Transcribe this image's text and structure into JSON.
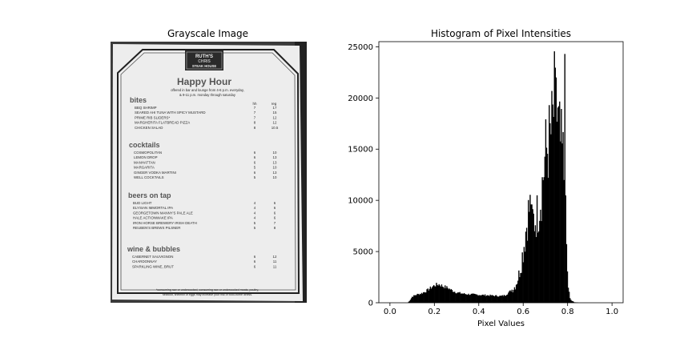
{
  "left_panel": {
    "title": "Grayscale Image",
    "menu": {
      "logo_line1": "RUTH'S",
      "logo_line2": "CHRIS",
      "logo_line3": "STEAK HOUSE",
      "heading": "Happy Hour",
      "subtitle_1": "offered in bar and lounge from 4-6 p.m. everyday,",
      "subtitle_2": "& 9-11 p.m. monday through saturday",
      "col_hh": "hh",
      "col_reg": "reg",
      "sections": [
        {
          "name": "bites",
          "items": [
            {
              "name": "BBQ SHRIMP",
              "hh": "7",
              "reg": "17"
            },
            {
              "name": "SEARED AHI TUNA WITH SPICY MUSTARD",
              "hh": "7",
              "reg": "15"
            },
            {
              "name": "PRIME RIB SLIDERS*",
              "hh": "7",
              "reg": "12"
            },
            {
              "name": "MARGHERITA FLATBREAD PIZZA",
              "hh": "8",
              "reg": "12"
            },
            {
              "name": "CHICKEN SALAD",
              "hh": "8",
              "reg": "10.5"
            }
          ]
        },
        {
          "name": "cocktails",
          "items": [
            {
              "name": "COSMOPOLITAN",
              "hh": "6",
              "reg": "10"
            },
            {
              "name": "LEMON DROP",
              "hh": "6",
              "reg": "13"
            },
            {
              "name": "MANHATTAN",
              "hh": "6",
              "reg": "13"
            },
            {
              "name": "MARGARITA",
              "hh": "5",
              "reg": "10"
            },
            {
              "name": "GINGER VODKA MARTINI",
              "hh": "6",
              "reg": "13"
            },
            {
              "name": "WELL COCKTAILS",
              "hh": "5",
              "reg": "10"
            }
          ]
        },
        {
          "name": "beers on tap",
          "items": [
            {
              "name": "BUD LIGHT",
              "hh": "4",
              "reg": "6"
            },
            {
              "name": "ELYSIAN IMMORTAL IPA",
              "hh": "4",
              "reg": "6"
            },
            {
              "name": "GEORGETOWN MANNY'S PALE ALE",
              "hh": "4",
              "reg": "6"
            },
            {
              "name": "HALE ACTIONWAKE IPA",
              "hh": "4",
              "reg": "6"
            },
            {
              "name": "IRON HORSE BREWERY IRISH DEATH",
              "hh": "5",
              "reg": "7"
            },
            {
              "name": "REUBEN'S BREWS PILSNER",
              "hh": "5",
              "reg": "8"
            }
          ]
        },
        {
          "name": "wine & bubbles",
          "items": [
            {
              "name": "CABERNET SAUVIGNON",
              "hh": "6",
              "reg": "12"
            },
            {
              "name": "CHARDONNAY",
              "hh": "6",
              "reg": "11"
            },
            {
              "name": "SPARKLING WINE, BRUT",
              "hh": "6",
              "reg": "11"
            }
          ]
        }
      ],
      "footnote_1": "*consuming raw or undercooked, consuming raw or undercooked meats, poultry,",
      "footnote_2": "seafood, shellfish or eggs may increase your risk of food-borne illness."
    }
  },
  "chart_data": {
    "type": "bar",
    "title": "Histogram of Pixel Intensities",
    "xlabel": "Pixel Values",
    "ylabel": "",
    "xlim": [
      -0.05,
      1.05
    ],
    "ylim": [
      0,
      25500
    ],
    "xticks": [
      0.0,
      0.2,
      0.4,
      0.6,
      0.8,
      1.0
    ],
    "xtick_labels": [
      "0.0",
      "0.2",
      "0.4",
      "0.6",
      "0.8",
      "1.0"
    ],
    "yticks": [
      0,
      5000,
      10000,
      15000,
      20000,
      25000
    ],
    "ytick_labels": [
      "0",
      "5000",
      "10000",
      "15000",
      "20000",
      "25000"
    ],
    "grid": false,
    "bar_color": "#000000",
    "bins": 256,
    "profile_x": [
      0.0,
      0.08,
      0.09,
      0.1,
      0.12,
      0.14,
      0.16,
      0.18,
      0.2,
      0.22,
      0.24,
      0.26,
      0.28,
      0.3,
      0.34,
      0.38,
      0.42,
      0.46,
      0.5,
      0.52,
      0.54,
      0.56,
      0.57,
      0.58,
      0.59,
      0.6,
      0.61,
      0.62,
      0.63,
      0.64,
      0.65,
      0.66,
      0.67,
      0.68,
      0.69,
      0.7,
      0.71,
      0.72,
      0.73,
      0.74,
      0.75,
      0.76,
      0.77,
      0.78,
      0.79,
      0.8,
      0.81,
      0.82,
      0.83,
      0.85,
      1.0
    ],
    "profile_y": [
      0,
      0,
      250,
      600,
      800,
      900,
      1100,
      1400,
      1700,
      1800,
      1600,
      1450,
      1200,
      1000,
      850,
      800,
      750,
      700,
      650,
      750,
      1100,
      1500,
      2000,
      2700,
      3800,
      5200,
      6800,
      8500,
      9400,
      8200,
      8000,
      8500,
      9200,
      10500,
      12500,
      14500,
      15300,
      16000,
      17000,
      19500,
      18000,
      16500,
      15000,
      14000,
      9000,
      2000,
      400,
      150,
      60,
      0,
      0
    ],
    "peaks": [
      {
        "x": 0.748,
        "y": 22000
      },
      {
        "x": 0.787,
        "y": 24300
      },
      {
        "x": 0.637,
        "y": 9600
      }
    ]
  }
}
